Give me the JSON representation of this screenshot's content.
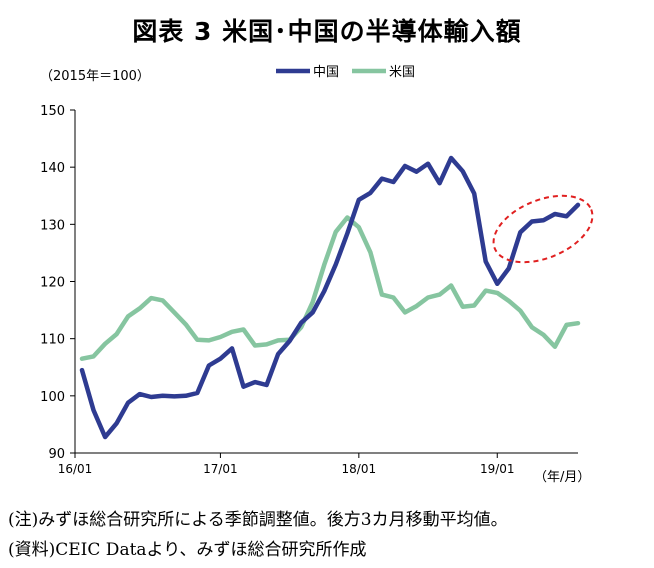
{
  "title": "図表 3 米国･中国の半導体輸入額",
  "unit_label": "（2015年＝100）",
  "x_unit_label": "（年/月）",
  "notes": [
    "(注)みずほ総合研究所による季節調整値。後方3カ月移動平均値。",
    "(資料)CEIC Dataより、みずほ総合研究所作成"
  ],
  "colors": {
    "china": "#2E3B91",
    "usa": "#86C5A0",
    "highlight": "#E02020",
    "axis": "#000000"
  },
  "chart_data": {
    "type": "line",
    "title": "図表 3 米国･中国の半導体輸入額",
    "ylabel": "（2015年＝100）",
    "xlabel": "（年/月）",
    "ylim": [
      90,
      150
    ],
    "yticks": [
      90,
      100,
      110,
      120,
      130,
      140,
      150
    ],
    "x": [
      "16/01",
      "16/02",
      "16/03",
      "16/04",
      "16/05",
      "16/06",
      "16/07",
      "16/08",
      "16/09",
      "16/10",
      "16/11",
      "16/12",
      "17/01",
      "17/02",
      "17/03",
      "17/04",
      "17/05",
      "17/06",
      "17/07",
      "17/08",
      "17/09",
      "17/10",
      "17/11",
      "17/12",
      "18/01",
      "18/02",
      "18/03",
      "18/04",
      "18/05",
      "18/06",
      "18/07",
      "18/08",
      "18/09",
      "18/10",
      "18/11",
      "18/12",
      "19/01",
      "19/02",
      "19/03",
      "19/04",
      "19/05",
      "19/06",
      "19/07",
      "19/08"
    ],
    "xtick_labels": [
      "16/01",
      "17/01",
      "18/01",
      "19/01"
    ],
    "legend_position": "top",
    "grid": false,
    "series": [
      {
        "name": "中国",
        "values": [
          104.5,
          97.5,
          92.8,
          95.2,
          98.8,
          100.3,
          99.8,
          100.0,
          99.9,
          100.0,
          100.5,
          105.3,
          106.5,
          108.3,
          101.6,
          102.4,
          101.9,
          107.3,
          109.6,
          112.8,
          114.6,
          118.3,
          123.0,
          128.4,
          134.3,
          135.5,
          138.0,
          137.4,
          140.2,
          139.2,
          140.6,
          137.2,
          141.6,
          139.3,
          135.4,
          123.5,
          119.6,
          122.3,
          128.6,
          130.5,
          130.7,
          131.8,
          131.4,
          133.4
        ]
      },
      {
        "name": "米国",
        "values": [
          106.5,
          106.9,
          109.1,
          110.8,
          113.9,
          115.3,
          117.1,
          116.7,
          114.6,
          112.5,
          109.8,
          109.7,
          110.3,
          111.2,
          111.6,
          108.8,
          109.0,
          109.7,
          109.8,
          112.0,
          116.4,
          122.9,
          128.7,
          131.2,
          129.5,
          125.1,
          117.7,
          117.2,
          114.6,
          115.7,
          117.2,
          117.7,
          119.3,
          115.6,
          115.8,
          118.4,
          118.0,
          116.6,
          114.9,
          112.0,
          110.7,
          108.6,
          112.4,
          112.7
        ]
      }
    ]
  }
}
